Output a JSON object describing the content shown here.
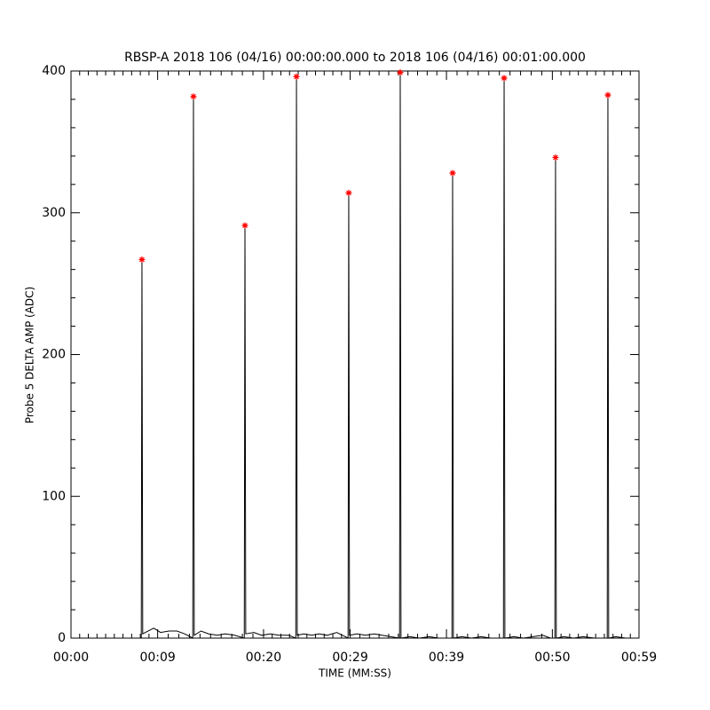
{
  "chart_data": {
    "type": "line",
    "title": "RBSP-A 2018 106 (04/16) 00:00:00.000 to 2018 106 (04/16) 00:01:00.000",
    "x_label": "TIME (MM:SS)",
    "y_label": "Probe 5 DELTA AMP (ADC)",
    "xlim": [
      0,
      59
    ],
    "ylim": [
      0,
      400
    ],
    "xticks": [
      {
        "value": 0,
        "label": "00:00"
      },
      {
        "value": 9,
        "label": "00:09"
      },
      {
        "value": 20,
        "label": "00:20"
      },
      {
        "value": 29,
        "label": "00:29"
      },
      {
        "value": 39,
        "label": "00:39"
      },
      {
        "value": 50,
        "label": "00:50"
      },
      {
        "value": 59,
        "label": "00:59"
      }
    ],
    "yticks": [
      0,
      100,
      200,
      300,
      400
    ],
    "series": [
      {
        "color": "#000000",
        "x": [
          7.3,
          7.37,
          7.45,
          8.0,
          8.6,
          9.3,
          10.2,
          11.0,
          11.8,
          12.65,
          12.72,
          12.8,
          13.5,
          14.3,
          15.2,
          16.0,
          17.0,
          18.0,
          18.07,
          18.15,
          19.0,
          19.8,
          20.7,
          21.6,
          22.6,
          23.35,
          23.42,
          23.5,
          24.2,
          25.0,
          25.8,
          26.6,
          27.6,
          28.78,
          28.85,
          28.93,
          29.7,
          30.6,
          31.5,
          32.3,
          33.2,
          34.13,
          34.2,
          34.28,
          35.2,
          36.2,
          37.2,
          38.2,
          39.57,
          39.64,
          39.72,
          40.6,
          41.6,
          42.6,
          43.6,
          44.92,
          44.99,
          45.07,
          46.0,
          47.0,
          48.0,
          49.0,
          49.8,
          50.26,
          50.33,
          50.41,
          51.2,
          52.2,
          53.2,
          54.4,
          55.7,
          55.77,
          55.85,
          56.6,
          57.6
        ],
        "values": [
          0,
          267,
          3,
          5,
          7,
          4,
          5,
          5,
          3,
          0,
          382,
          2,
          5,
          3,
          2,
          3,
          2,
          0,
          291,
          3,
          4,
          2,
          3,
          2,
          2,
          0,
          396,
          2,
          3,
          2,
          3,
          2,
          4,
          0,
          314,
          2,
          3,
          2,
          3,
          2,
          1,
          0,
          399,
          0,
          1,
          0,
          1,
          0,
          0,
          328,
          0,
          1,
          0,
          1,
          0,
          0,
          395,
          0,
          1,
          0,
          1,
          2,
          0,
          0,
          339,
          0,
          1,
          0,
          1,
          0,
          0,
          383,
          0,
          1,
          0
        ]
      },
      {
        "color": "#ff0000",
        "marker": "*",
        "x": [
          7.37,
          12.72,
          18.07,
          23.42,
          28.85,
          34.2,
          39.64,
          44.99,
          50.33,
          55.77
        ],
        "values": [
          267,
          382,
          291,
          396,
          314,
          399,
          328,
          395,
          339,
          383
        ]
      }
    ]
  }
}
